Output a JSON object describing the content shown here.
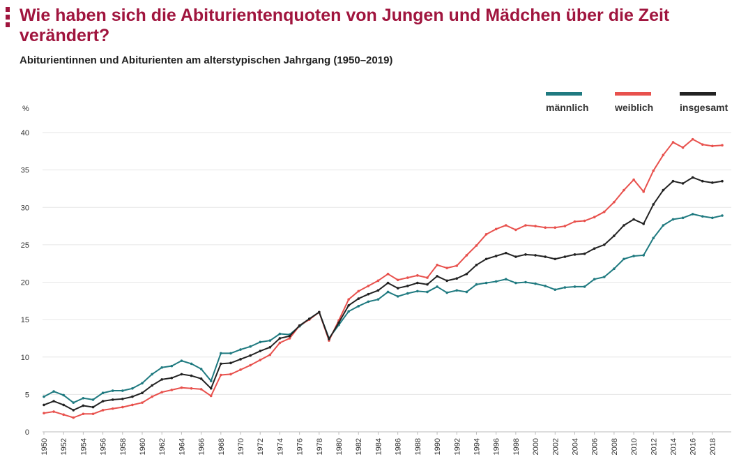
{
  "title": "Wie haben sich die Abiturientenquoten von Jungen und Mädchen über die Zeit verändert?",
  "subtitle": "Abiturientinnen und Abiturienten am alterstypischen Jahrgang (1950–2019)",
  "colors": {
    "brand": "#a0153e",
    "maennlich": "#1f7a80",
    "weiblich": "#e8514d",
    "insgesamt": "#222222",
    "grid": "#e6e6e6"
  },
  "chart_data": {
    "type": "line",
    "title": "Wie haben sich die Abiturientenquoten von Jungen und Mädchen über die Zeit verändert?",
    "subtitle": "Abiturientinnen und Abiturienten am alterstypischen Jahrgang (1950–2019)",
    "ylabel": "%",
    "xlabel": "",
    "ylim": [
      0,
      40
    ],
    "yticks": [
      0,
      5,
      10,
      15,
      20,
      25,
      30,
      35,
      40
    ],
    "xticks": [
      1950,
      1952,
      1954,
      1956,
      1958,
      1960,
      1962,
      1964,
      1966,
      1968,
      1970,
      1972,
      1974,
      1976,
      1978,
      1980,
      1982,
      1984,
      1986,
      1988,
      1990,
      1992,
      1994,
      1996,
      1998,
      2000,
      2002,
      2004,
      2006,
      2008,
      2010,
      2012,
      2014,
      2016,
      2018
    ],
    "grid": true,
    "legend_position": "top-right",
    "x": [
      1950,
      1951,
      1952,
      1953,
      1954,
      1955,
      1956,
      1957,
      1958,
      1959,
      1960,
      1961,
      1962,
      1963,
      1964,
      1965,
      1966,
      1967,
      1968,
      1969,
      1970,
      1971,
      1972,
      1973,
      1974,
      1975,
      1976,
      1977,
      1978,
      1979,
      1980,
      1981,
      1982,
      1983,
      1984,
      1985,
      1986,
      1987,
      1988,
      1989,
      1990,
      1991,
      1992,
      1993,
      1994,
      1995,
      1996,
      1997,
      1998,
      1999,
      2000,
      2001,
      2002,
      2003,
      2004,
      2005,
      2006,
      2007,
      2008,
      2009,
      2010,
      2011,
      2012,
      2013,
      2014,
      2015,
      2016,
      2017,
      2018,
      2019
    ],
    "series": [
      {
        "name": "männlich",
        "key": "maennlich",
        "values": [
          4.7,
          5.4,
          4.9,
          3.9,
          4.5,
          4.3,
          5.2,
          5.5,
          5.5,
          5.8,
          6.5,
          7.7,
          8.6,
          8.8,
          9.5,
          9.1,
          8.4,
          6.8,
          10.5,
          10.5,
          11.0,
          11.4,
          12.0,
          12.2,
          13.1,
          13.0,
          14.1,
          15.1,
          16.0,
          12.5,
          14.3,
          16.1,
          16.8,
          17.4,
          17.7,
          18.7,
          18.1,
          18.5,
          18.8,
          18.7,
          19.4,
          18.6,
          18.9,
          18.7,
          19.7,
          19.9,
          20.1,
          20.4,
          19.9,
          20.0,
          19.8,
          19.5,
          19.0,
          19.3,
          19.4,
          19.4,
          20.4,
          20.7,
          21.8,
          23.1,
          23.5,
          23.6,
          25.9,
          27.6,
          28.4,
          28.6,
          29.1,
          28.8,
          28.6,
          28.9
        ]
      },
      {
        "name": "weiblich",
        "key": "weiblich",
        "values": [
          2.5,
          2.7,
          2.3,
          1.9,
          2.4,
          2.4,
          2.9,
          3.1,
          3.3,
          3.6,
          3.9,
          4.7,
          5.3,
          5.6,
          5.9,
          5.8,
          5.7,
          4.8,
          7.6,
          7.7,
          8.3,
          8.9,
          9.6,
          10.3,
          11.9,
          12.5,
          14.2,
          15.0,
          16.0,
          12.2,
          14.9,
          17.7,
          18.8,
          19.5,
          20.2,
          21.1,
          20.3,
          20.6,
          20.9,
          20.6,
          22.3,
          21.9,
          22.2,
          23.6,
          24.9,
          26.4,
          27.1,
          27.6,
          27.0,
          27.6,
          27.5,
          27.3,
          27.3,
          27.5,
          28.1,
          28.2,
          28.7,
          29.4,
          30.7,
          32.3,
          33.7,
          32.1,
          34.9,
          37.0,
          38.7,
          38.0,
          39.1,
          38.4,
          38.2,
          38.3
        ]
      },
      {
        "name": "insgesamt",
        "key": "insgesamt",
        "values": [
          3.6,
          4.1,
          3.6,
          2.9,
          3.5,
          3.3,
          4.1,
          4.3,
          4.4,
          4.7,
          5.2,
          6.2,
          7.0,
          7.2,
          7.7,
          7.5,
          7.1,
          5.8,
          9.1,
          9.2,
          9.7,
          10.2,
          10.8,
          11.3,
          12.5,
          12.8,
          14.2,
          15.1,
          16.0,
          12.4,
          14.6,
          16.9,
          17.8,
          18.4,
          18.9,
          19.9,
          19.2,
          19.5,
          19.9,
          19.7,
          20.8,
          20.2,
          20.5,
          21.1,
          22.3,
          23.1,
          23.5,
          23.9,
          23.4,
          23.7,
          23.6,
          23.4,
          23.1,
          23.4,
          23.7,
          23.8,
          24.5,
          25.0,
          26.2,
          27.6,
          28.4,
          27.8,
          30.4,
          32.3,
          33.5,
          33.2,
          34.0,
          33.5,
          33.3,
          33.5
        ]
      }
    ]
  }
}
